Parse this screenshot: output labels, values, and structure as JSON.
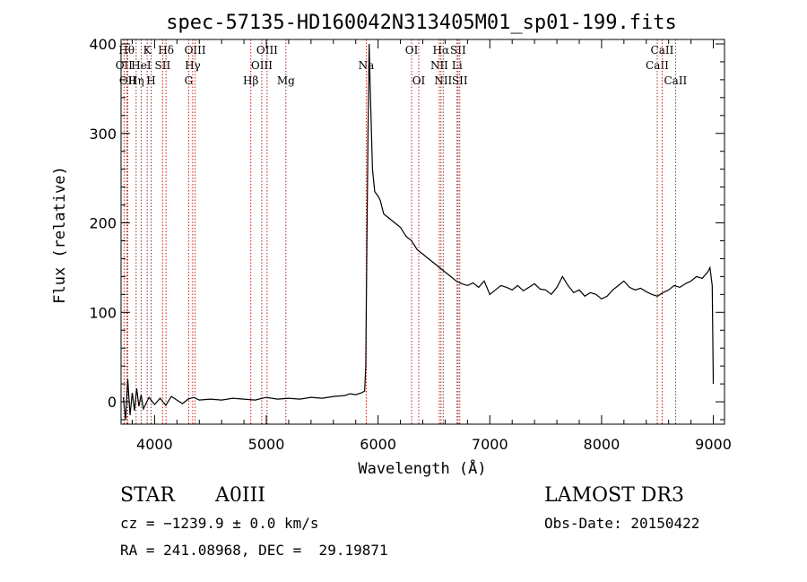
{
  "chart_data": {
    "type": "line",
    "title": "spec-57135-HD160042N313405M01_sp01-199.fits",
    "xlabel": "Wavelength (Å)",
    "ylabel": "Flux (relative)",
    "xlim": [
      3700,
      9100
    ],
    "ylim": [
      -25,
      405
    ],
    "xticks": [
      4000,
      5000,
      6000,
      7000,
      8000,
      9000
    ],
    "yticks": [
      0,
      100,
      200,
      300,
      400
    ],
    "series": [
      {
        "name": "spectrum",
        "x": [
          3720,
          3740,
          3760,
          3780,
          3800,
          3820,
          3840,
          3860,
          3880,
          3900,
          3950,
          4000,
          4050,
          4100,
          4150,
          4200,
          4250,
          4300,
          4350,
          4400,
          4500,
          4600,
          4700,
          4800,
          4900,
          5000,
          5100,
          5200,
          5300,
          5400,
          5500,
          5600,
          5700,
          5750,
          5800,
          5850,
          5880,
          5890,
          5900,
          5910,
          5920,
          5930,
          5950,
          5970,
          6000,
          6020,
          6050,
          6100,
          6150,
          6200,
          6250,
          6300,
          6350,
          6400,
          6450,
          6500,
          6550,
          6600,
          6650,
          6700,
          6750,
          6800,
          6850,
          6900,
          6950,
          7000,
          7050,
          7100,
          7150,
          7200,
          7250,
          7300,
          7350,
          7400,
          7450,
          7500,
          7550,
          7600,
          7650,
          7700,
          7750,
          7800,
          7850,
          7900,
          7950,
          8000,
          8050,
          8100,
          8150,
          8200,
          8250,
          8300,
          8350,
          8400,
          8450,
          8500,
          8550,
          8600,
          8650,
          8700,
          8750,
          8800,
          8850,
          8900,
          8950,
          8970,
          8990,
          9000
        ],
        "y": [
          5,
          -20,
          25,
          -15,
          10,
          -10,
          15,
          -5,
          8,
          -8,
          5,
          -3,
          4,
          -4,
          6,
          2,
          -2,
          3,
          5,
          2,
          3,
          2,
          4,
          3,
          2,
          5,
          3,
          4,
          3,
          5,
          4,
          6,
          7,
          9,
          8,
          10,
          12,
          40,
          180,
          300,
          400,
          350,
          260,
          235,
          230,
          225,
          210,
          205,
          200,
          195,
          185,
          180,
          170,
          165,
          160,
          155,
          150,
          145,
          140,
          135,
          132,
          130,
          133,
          128,
          135,
          120,
          125,
          130,
          128,
          125,
          130,
          124,
          128,
          132,
          126,
          125,
          120,
          128,
          140,
          130,
          122,
          125,
          118,
          122,
          120,
          115,
          118,
          125,
          130,
          135,
          128,
          125,
          127,
          123,
          120,
          118,
          122,
          125,
          130,
          128,
          132,
          135,
          140,
          138,
          145,
          150,
          130,
          20
        ]
      }
    ],
    "lines": [
      {
        "label": "OII",
        "x": 3727,
        "row": 2
      },
      {
        "label": "Hθ",
        "x": 3750,
        "row": 1
      },
      {
        "label": "OII",
        "x": 3760,
        "row": 3
      },
      {
        "label": "Hη",
        "x": 3835,
        "row": 3
      },
      {
        "label": "HeI",
        "x": 3880,
        "row": 2
      },
      {
        "label": "K",
        "x": 3934,
        "row": 1
      },
      {
        "label": "H",
        "x": 3969,
        "row": 3
      },
      {
        "label": "SII",
        "x": 4072,
        "row": 2
      },
      {
        "label": "Hδ",
        "x": 4102,
        "row": 1
      },
      {
        "label": "G",
        "x": 4305,
        "row": 3
      },
      {
        "label": "Hγ",
        "x": 4341,
        "row": 2
      },
      {
        "label": "OIII",
        "x": 4363,
        "row": 1
      },
      {
        "label": "Hβ",
        "x": 4861,
        "row": 3
      },
      {
        "label": "OIII",
        "x": 4959,
        "row": 2
      },
      {
        "label": "OIII",
        "x": 5007,
        "row": 1
      },
      {
        "label": "Mg",
        "x": 5175,
        "row": 3
      },
      {
        "label": "Na",
        "x": 5894,
        "row": 2
      },
      {
        "label": "OI",
        "x": 6300,
        "row": 1
      },
      {
        "label": "OI",
        "x": 6364,
        "row": 3
      },
      {
        "label": "NII",
        "x": 6548,
        "row": 2
      },
      {
        "label": "Hα",
        "x": 6563,
        "row": 1
      },
      {
        "label": "NII",
        "x": 6583,
        "row": 3
      },
      {
        "label": "Li",
        "x": 6707,
        "row": 2
      },
      {
        "label": "SII",
        "x": 6716,
        "row": 1
      },
      {
        "label": "SII",
        "x": 6731,
        "row": 3
      },
      {
        "label": "CaII",
        "x": 8498,
        "row": 2
      },
      {
        "label": "CaII",
        "x": 8542,
        "row": 1
      },
      {
        "label": "CaII",
        "x": 8662,
        "row": 3
      }
    ]
  },
  "info": {
    "object_class": "STAR",
    "subclass": "A0III",
    "survey": "LAMOST DR3",
    "cz": "cz = −1239.9 ± 0.0 km/s",
    "obs_date": "Obs-Date: 20150422",
    "radec": "RA = 241.08968, DEC =  29.19871"
  },
  "colors": {
    "line_marker": "#b22222",
    "spectrum": "#000000"
  }
}
